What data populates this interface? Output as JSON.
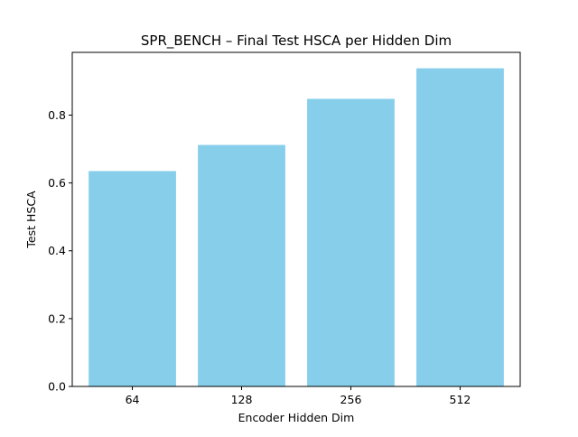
{
  "chart_data": {
    "type": "bar",
    "title": "SPR_BENCH – Final Test HSCA per Hidden Dim",
    "xlabel": "Encoder Hidden Dim",
    "ylabel": "Test HSCA",
    "categories": [
      "64",
      "128",
      "256",
      "512"
    ],
    "values": [
      0.635,
      0.712,
      0.848,
      0.938
    ],
    "ylim": [
      0,
      0.985
    ],
    "yticks": [
      0.0,
      0.2,
      0.4,
      0.6,
      0.8
    ],
    "ytick_labels": [
      "0.0",
      "0.2",
      "0.4",
      "0.6",
      "0.8"
    ],
    "bar_color": "#87ceeb",
    "grid": false,
    "legend": "none"
  }
}
